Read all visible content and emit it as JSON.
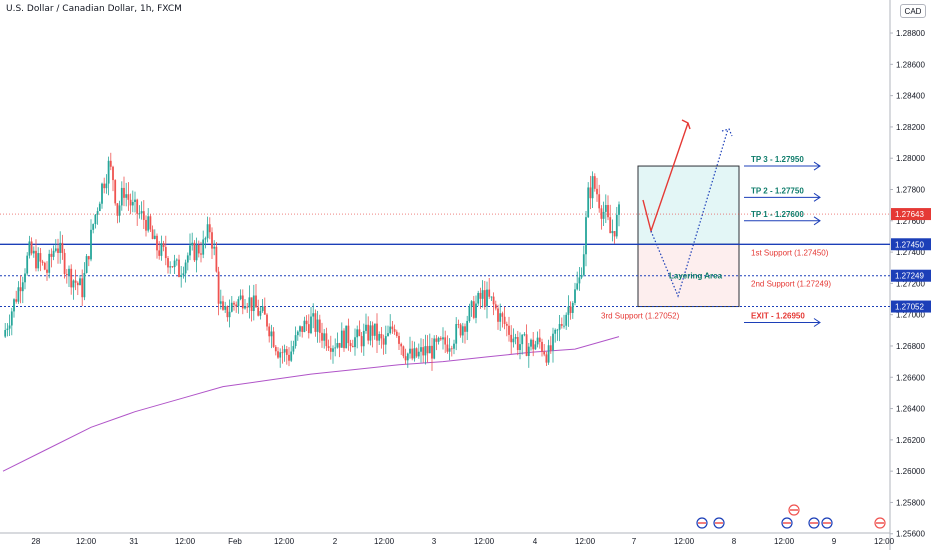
{
  "header": {
    "title": "U.S. Dollar / Canadian Dollar, 1h, FXCM",
    "currency": "CAD"
  },
  "colors": {
    "bull": "#26a69a",
    "bear": "#ef5350",
    "ma": "#b054c8",
    "support": "#1c3fb8",
    "resistance": "#e53935",
    "tp": "#0e7c6b",
    "buy_zone": "#e3f6f6",
    "layering_zone": "#fdeeee"
  },
  "chart_data": {
    "type": "candlestick",
    "y_range": [
      1.2556,
      1.2896
    ],
    "y_ticks": [
      "1.28800",
      "1.28600",
      "1.28400",
      "1.28200",
      "1.28000",
      "1.27800",
      "1.27600",
      "1.27400",
      "1.27200",
      "1.27000",
      "1.26800",
      "1.26600",
      "1.26400",
      "1.26200",
      "1.26000",
      "1.25800",
      "1.25600"
    ],
    "x_ticks": [
      "28",
      "12:00",
      "31",
      "12:00",
      "Feb",
      "12:00",
      "2",
      "12:00",
      "3",
      "12:00",
      "4",
      "12:00",
      "7",
      "12:00",
      "8",
      "12:00",
      "9",
      "12:00"
    ],
    "ohlc_control_points": [
      [
        0,
        1.2686
      ],
      [
        6,
        1.2712
      ],
      [
        12,
        1.274
      ],
      [
        20,
        1.2728
      ],
      [
        24,
        1.2746
      ],
      [
        30,
        1.2726
      ],
      [
        36,
        1.2716
      ],
      [
        41,
        1.2758
      ],
      [
        45,
        1.2782
      ],
      [
        48,
        1.2795
      ],
      [
        50,
        1.2788
      ],
      [
        52,
        1.2766
      ],
      [
        55,
        1.278
      ],
      [
        59,
        1.2768
      ],
      [
        65,
        1.276
      ],
      [
        69,
        1.2744
      ],
      [
        75,
        1.2736
      ],
      [
        80,
        1.2728
      ],
      [
        84,
        1.2738
      ],
      [
        91,
        1.2744
      ],
      [
        94,
        1.2755
      ],
      [
        96,
        1.274
      ],
      [
        98,
        1.2712
      ],
      [
        100,
        1.2698
      ],
      [
        104,
        1.2706
      ],
      [
        110,
        1.2712
      ],
      [
        116,
        1.2702
      ],
      [
        120,
        1.2696
      ],
      [
        125,
        1.2678
      ],
      [
        130,
        1.2674
      ],
      [
        136,
        1.2692
      ],
      [
        140,
        1.2696
      ],
      [
        145,
        1.2688
      ],
      [
        150,
        1.2682
      ],
      [
        156,
        1.2686
      ],
      [
        162,
        1.2684
      ],
      [
        168,
        1.269
      ],
      [
        173,
        1.268
      ],
      [
        178,
        1.2694
      ],
      [
        182,
        1.2678
      ],
      [
        186,
        1.2672
      ],
      [
        191,
        1.2676
      ],
      [
        196,
        1.2678
      ],
      [
        202,
        1.2682
      ],
      [
        207,
        1.269
      ],
      [
        213,
        1.2702
      ],
      [
        218,
        1.2712
      ],
      [
        222,
        1.2708
      ],
      [
        226,
        1.2698
      ],
      [
        230,
        1.269
      ],
      [
        234,
        1.2682
      ],
      [
        239,
        1.268
      ],
      [
        244,
        1.2682
      ],
      [
        248,
        1.2674
      ],
      [
        252,
        1.2688
      ],
      [
        256,
        1.2702
      ],
      [
        260,
        1.2714
      ],
      [
        262,
        1.2722
      ],
      [
        264,
        1.2742
      ],
      [
        266,
        1.2776
      ],
      [
        268,
        1.2784
      ],
      [
        270,
        1.2778
      ],
      [
        272,
        1.2768
      ],
      [
        274,
        1.2764
      ],
      [
        276,
        1.2752
      ],
      [
        278,
        1.2756
      ],
      [
        280,
        1.2764
      ]
    ],
    "ma_points": [
      [
        0,
        1.26
      ],
      [
        20,
        1.2614
      ],
      [
        40,
        1.2628
      ],
      [
        60,
        1.2638
      ],
      [
        80,
        1.2646
      ],
      [
        100,
        1.2654
      ],
      [
        120,
        1.2658
      ],
      [
        140,
        1.2662
      ],
      [
        160,
        1.2665
      ],
      [
        180,
        1.2668
      ],
      [
        200,
        1.267
      ],
      [
        220,
        1.2673
      ],
      [
        240,
        1.2676
      ],
      [
        260,
        1.2678
      ],
      [
        275,
        1.2684
      ],
      [
        280,
        1.2686
      ]
    ],
    "last_price": "1.27643",
    "levels": [
      {
        "name": "TP 3 - 1.27950",
        "price": 1.2795,
        "kind": "tp"
      },
      {
        "name": "TP 2 - 1.27750",
        "price": 1.2775,
        "kind": "tp"
      },
      {
        "name": "TP 1 - 1.27600",
        "price": 1.276,
        "kind": "tp"
      },
      {
        "name": "1st Support (1.27450)",
        "price": 1.2745,
        "kind": "support",
        "tag": "1.27450"
      },
      {
        "name": "2nd Support (1.27249)",
        "price": 1.27249,
        "kind": "support",
        "tag": "1.27249"
      },
      {
        "name": "3rd Support (1.27052)",
        "price": 1.27052,
        "kind": "support",
        "tag": "1.27052"
      },
      {
        "name": "EXIT - 1.26950",
        "price": 1.2695,
        "kind": "exit"
      }
    ],
    "layering_label": "Layering Area"
  }
}
